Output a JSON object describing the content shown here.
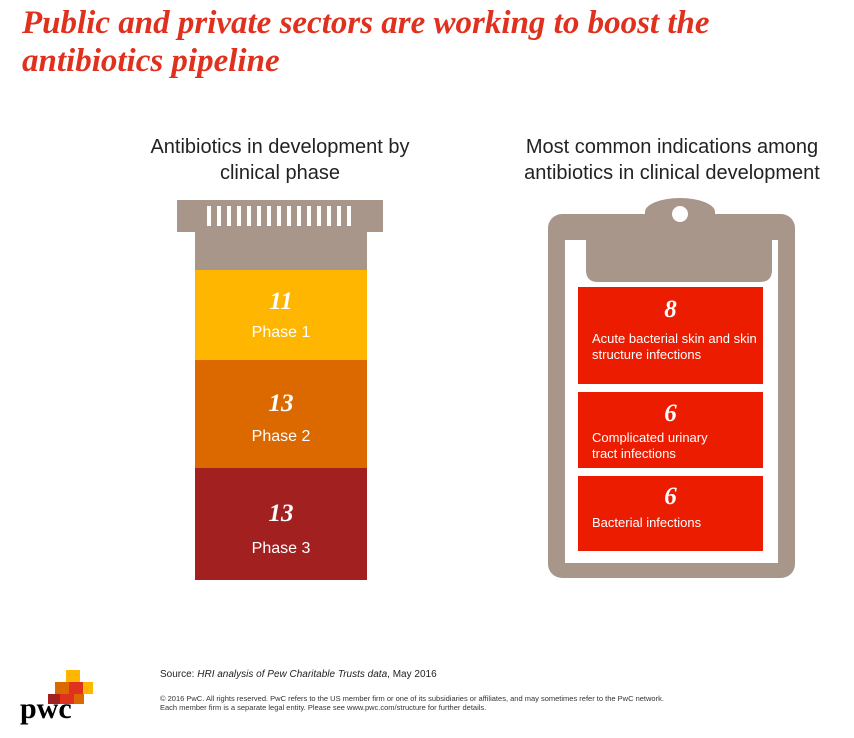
{
  "title": "Public and private sectors are working to boost the antibiotics pipeline",
  "phases": {
    "heading": "Antibiotics in development by clinical phase",
    "items": [
      {
        "count": "11",
        "label": "Phase 1"
      },
      {
        "count": "13",
        "label": "Phase 2"
      },
      {
        "count": "13",
        "label": "Phase 3"
      }
    ]
  },
  "indications": {
    "heading": "Most common indications among antibiotics in clinical development",
    "items": [
      {
        "count": "8",
        "label": "Acute bacterial skin and skin structure infections"
      },
      {
        "count": "6",
        "label": "Complicated urinary tract infections"
      },
      {
        "count": "6",
        "label": "Bacterial infections"
      }
    ]
  },
  "source": {
    "prefix": "Source:",
    "italic": "HRI analysis of Pew Charitable Trusts data",
    "suffix": ", May 2016"
  },
  "copyright": [
    "© 2016 PwC. All rights reserved. PwC refers to the US member firm or one of its subsidiaries or affiliates, and may sometimes refer to the PwC network.",
    "Each member firm is a separate legal entity. Please see www.pwc.com/structure for further details."
  ],
  "logo": "pwc"
}
